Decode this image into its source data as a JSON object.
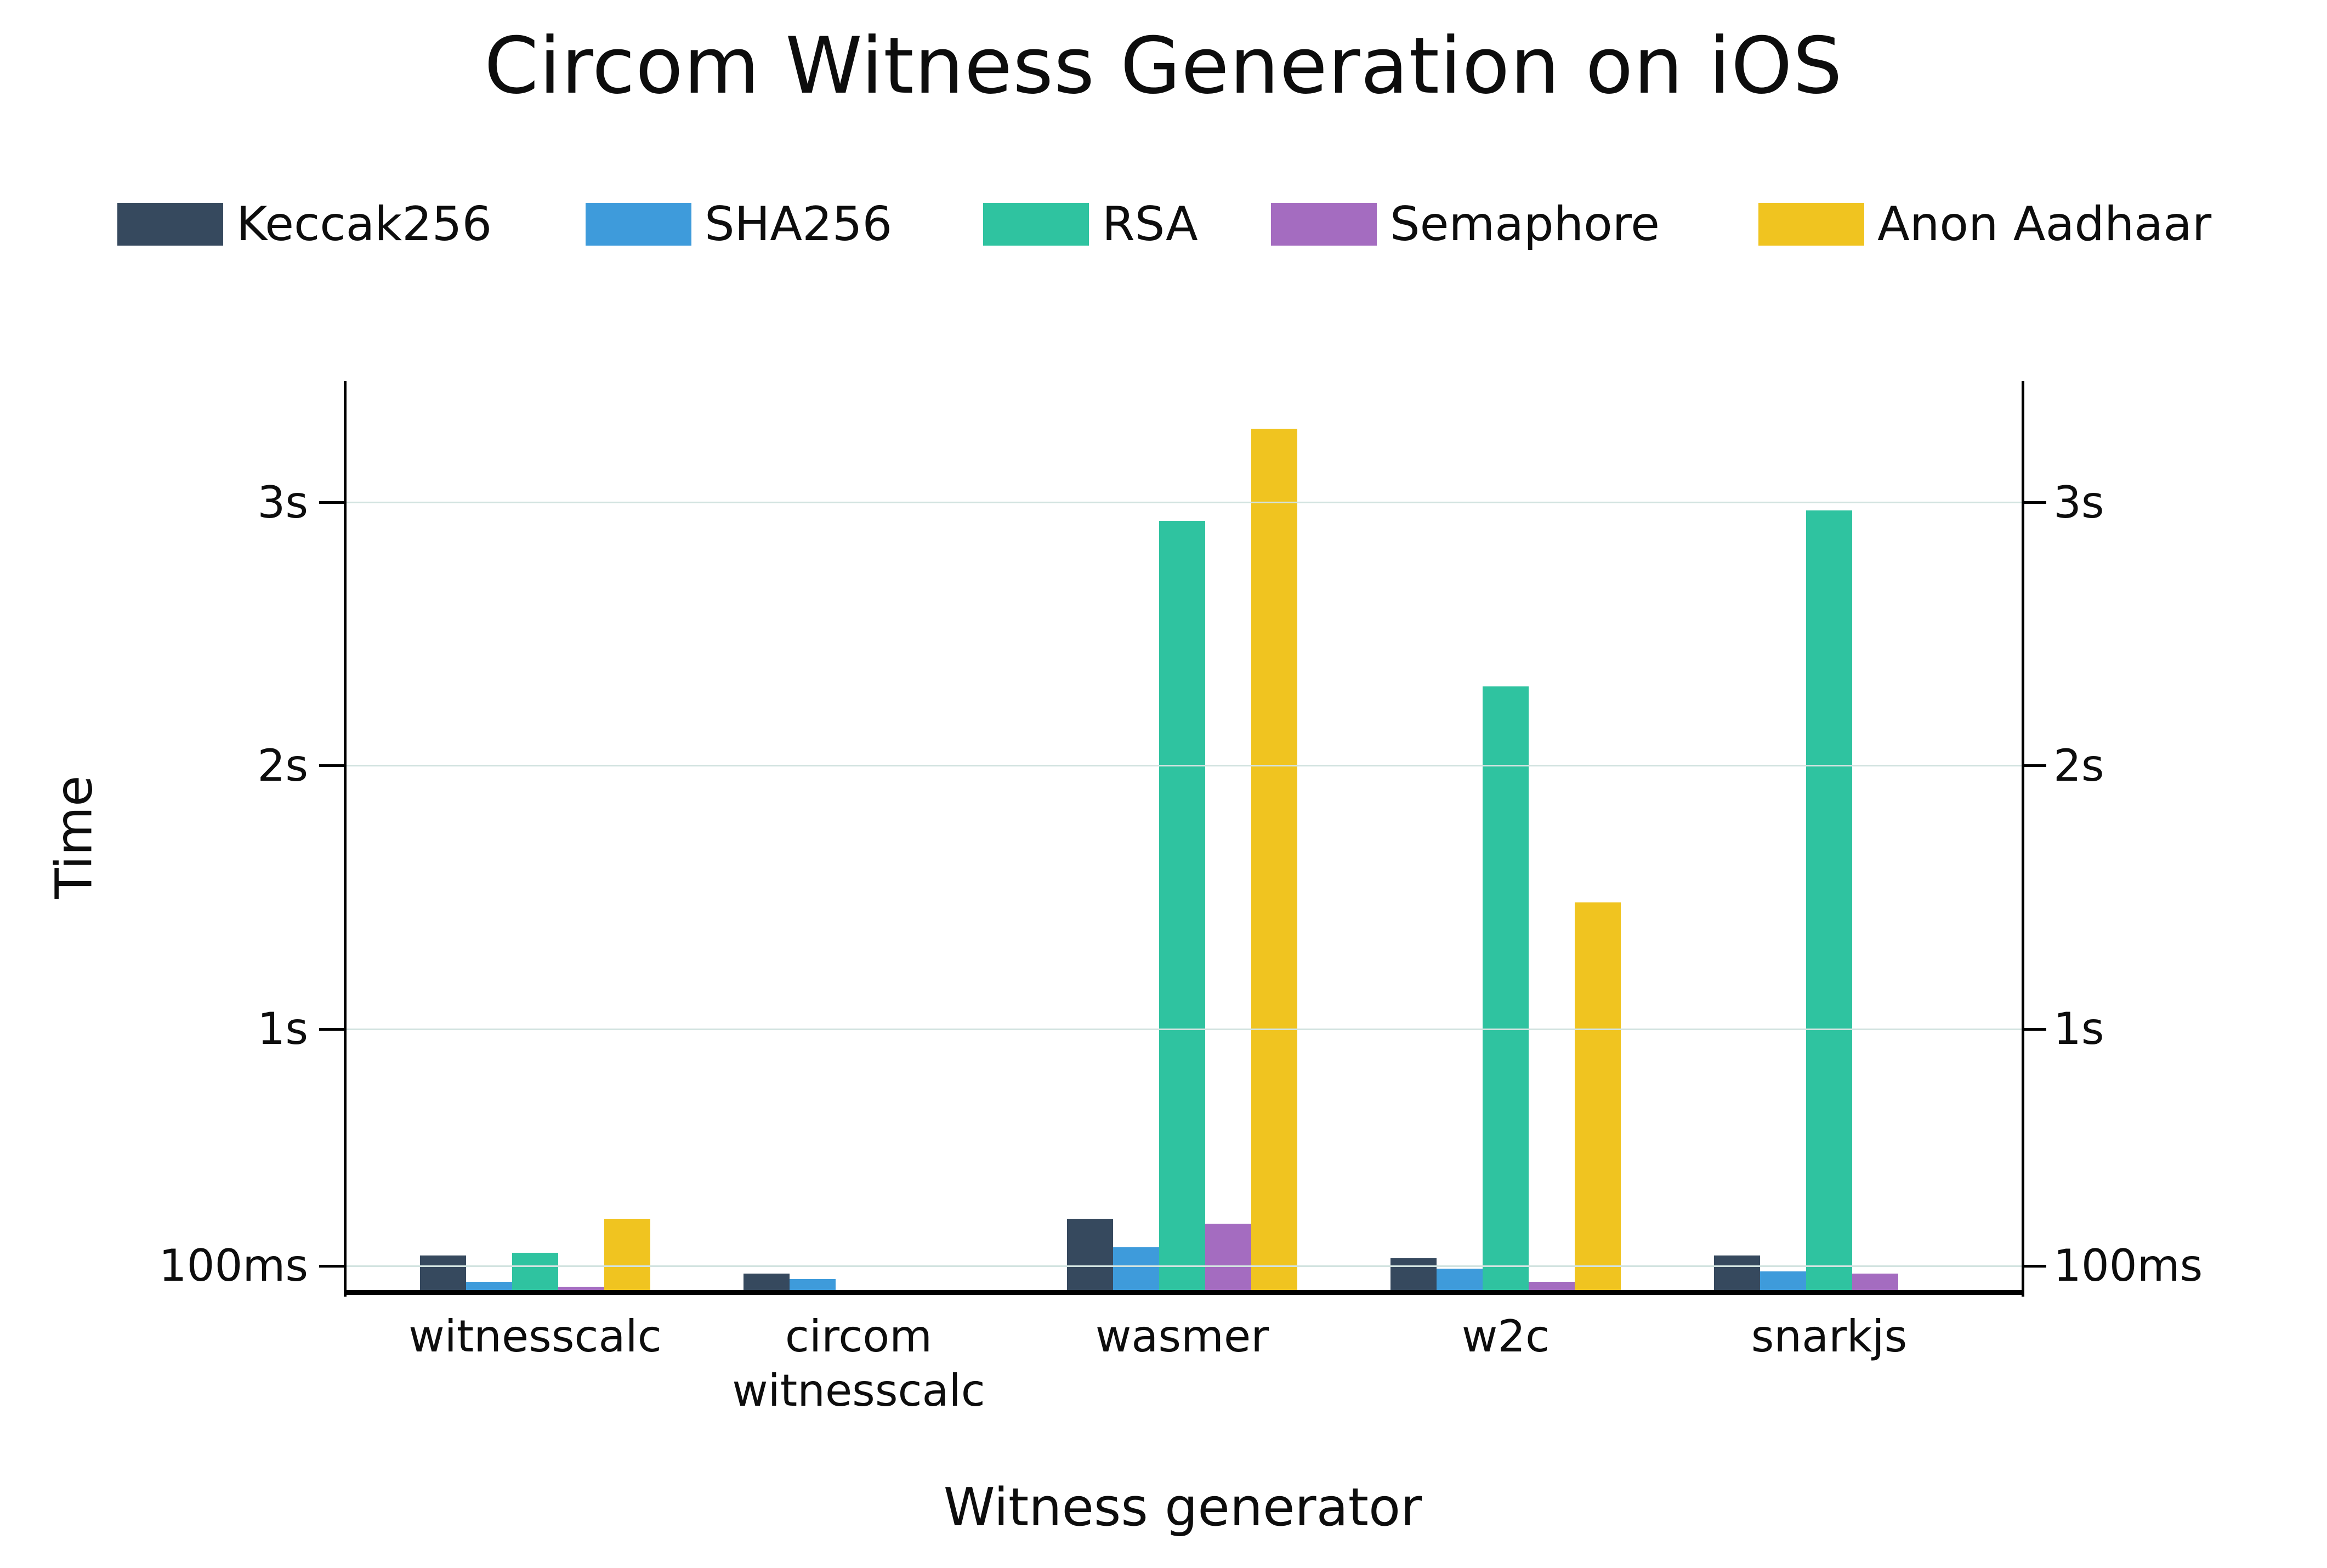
{
  "title": "Circom Witness Generation on iOS",
  "axes": {
    "ylabel": "Time",
    "xlabel": "Witness generator"
  },
  "legend": {
    "items": [
      {
        "label": "Keccak256",
        "color": "#36495E"
      },
      {
        "label": "SHA256",
        "color": "#3E9BDB"
      },
      {
        "label": "RSA",
        "color": "#2FC3A0"
      },
      {
        "label": "Semaphore",
        "color": "#A46CC0"
      },
      {
        "label": "Anon Aadhaar",
        "color": "#F0C420"
      }
    ]
  },
  "chart_data": {
    "type": "bar",
    "title": "Circom Witness Generation on iOS",
    "xlabel": "Witness generator",
    "ylabel": "Time",
    "value_unit": "seconds",
    "categories": [
      "witnesscalc",
      "circom witnesscalc",
      "wasmer",
      "w2c",
      "snarkjs"
    ],
    "category_label_lines": [
      [
        "witnesscalc"
      ],
      [
        "circom",
        "witnesscalc"
      ],
      [
        "wasmer"
      ],
      [
        "w2c"
      ],
      [
        "snarkjs"
      ]
    ],
    "series": [
      {
        "name": "Keccak256",
        "color": "#36495E",
        "values": [
          0.14,
          0.07,
          0.28,
          0.13,
          0.14
        ]
      },
      {
        "name": "SHA256",
        "color": "#3E9BDB",
        "values": [
          0.04,
          0.05,
          0.17,
          0.09,
          0.08
        ]
      },
      {
        "name": "RSA",
        "color": "#2FC3A0",
        "values": [
          0.15,
          null,
          2.93,
          2.3,
          2.97
        ]
      },
      {
        "name": "Semaphore",
        "color": "#A46CC0",
        "values": [
          0.02,
          null,
          0.26,
          0.04,
          0.07
        ]
      },
      {
        "name": "Anon Aadhaar",
        "color": "#F0C420",
        "values": [
          0.28,
          null,
          3.28,
          1.48,
          null
        ]
      }
    ],
    "ylim": [
      0,
      3.45
    ],
    "yticks": [
      {
        "value": 0.1,
        "label": "100ms"
      },
      {
        "value": 1,
        "label": "1s"
      },
      {
        "value": 2,
        "label": "2s"
      },
      {
        "value": 3,
        "label": "3s"
      }
    ],
    "grid": true,
    "grid_color": "#d2e3e0",
    "legend_position": "top",
    "y_axis_sides": [
      "left",
      "right"
    ]
  }
}
